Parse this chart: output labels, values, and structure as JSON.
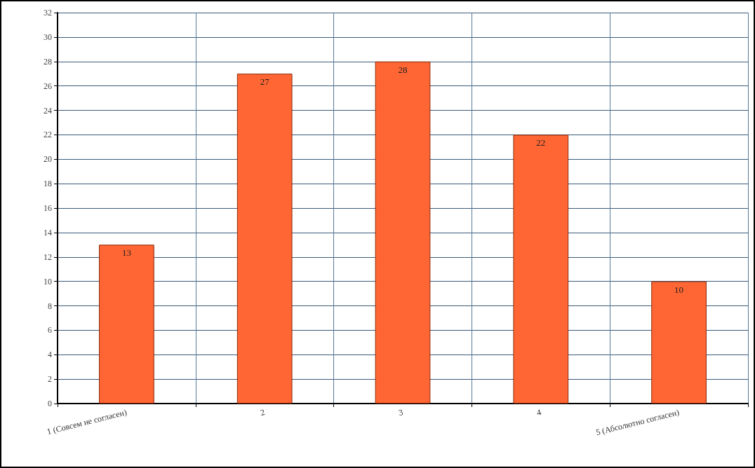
{
  "chart_data": {
    "type": "bar",
    "categories": [
      "1 (Совсем не согласен)",
      "2",
      "3",
      "4",
      "5 (Абсолютно согласен)"
    ],
    "values": [
      13,
      27,
      28,
      22,
      10
    ],
    "color": "#ff6633",
    "ylim": [
      0,
      32
    ],
    "yticks": [
      0,
      2,
      4,
      6,
      8,
      10,
      12,
      14,
      16,
      18,
      20,
      22,
      24,
      26,
      28,
      30,
      32
    ],
    "grid": true,
    "data_labels": true
  }
}
